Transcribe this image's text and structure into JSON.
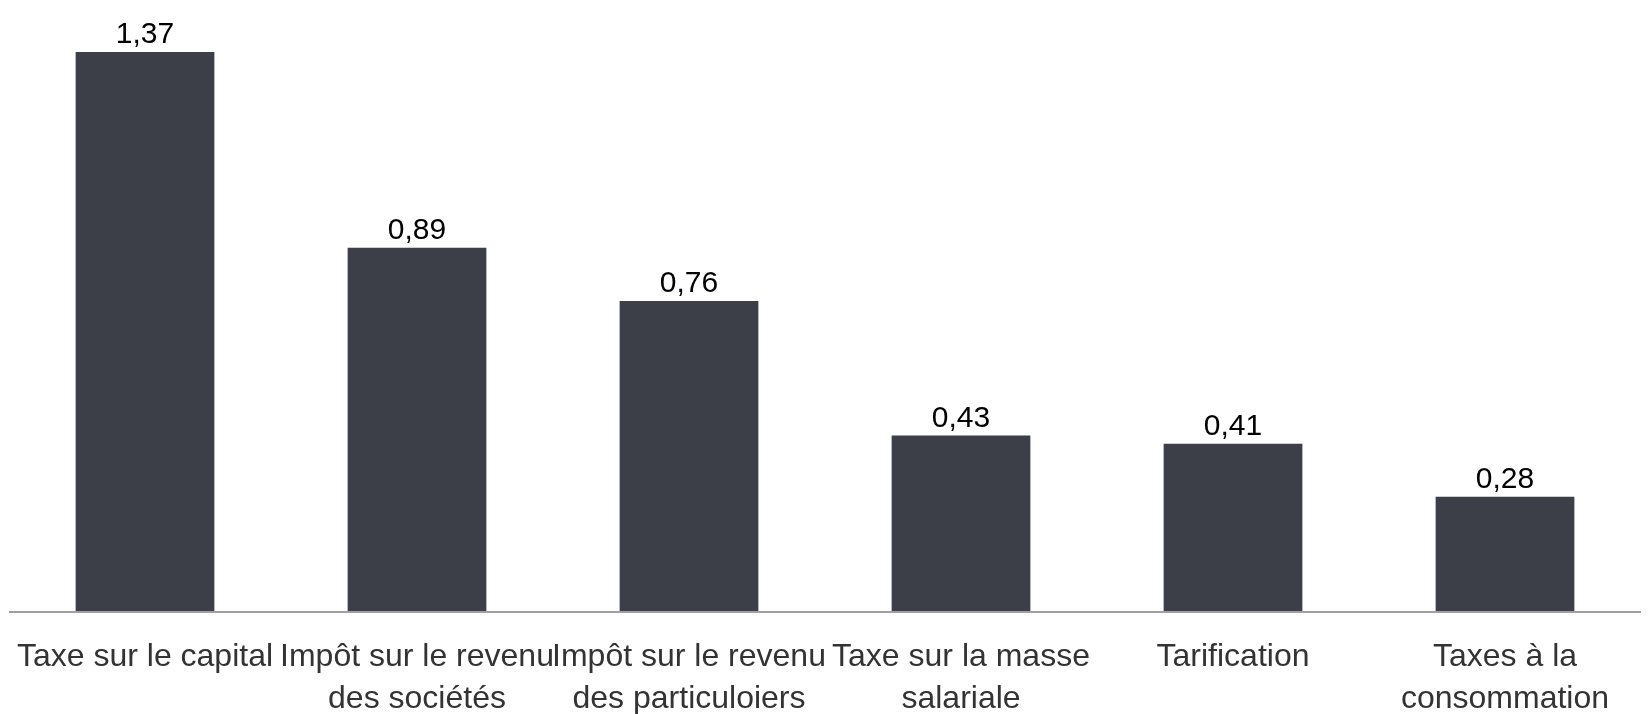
{
  "chart_data": {
    "type": "bar",
    "categories": [
      "Taxe sur le capital",
      "Impôt sur le revenu des sociétés",
      "Impôt sur le revenu des particuloiers",
      "Taxe sur la masse salariale",
      "Tarification",
      "Taxes à la consommation"
    ],
    "values": [
      1.37,
      0.89,
      0.76,
      0.43,
      0.41,
      0.28
    ],
    "value_labels": [
      "1,37",
      "0,89",
      "0,76",
      "0,43",
      "0,41",
      "0,28"
    ],
    "color": "#3c3f47"
  }
}
